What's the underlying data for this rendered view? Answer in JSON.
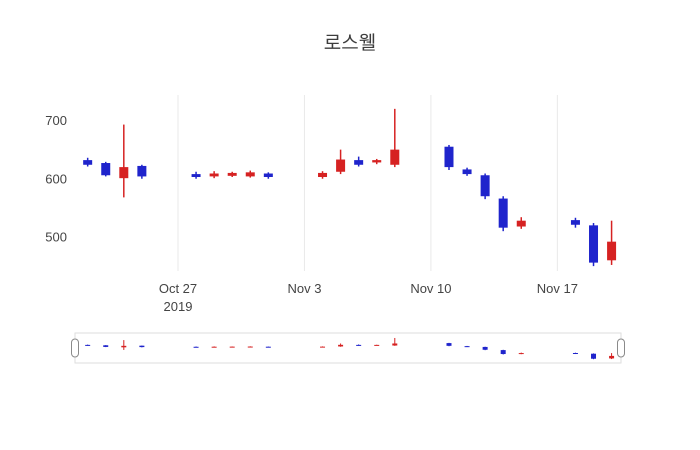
{
  "title": "로스웰",
  "colors": {
    "up": "#d62222",
    "down": "#1f24cc",
    "grid": "#e9e9e9",
    "text": "#444444",
    "slider_border": "#dedede",
    "handle_border": "#8a8a8a"
  },
  "y_axis": {
    "ticks": [
      700,
      600,
      500
    ]
  },
  "x_axis": {
    "ticks": [
      {
        "label": "Oct 27",
        "sub": "2019",
        "date": "2019-10-27"
      },
      {
        "label": "Nov 3",
        "sub": "",
        "date": "2019-11-03"
      },
      {
        "label": "Nov 10",
        "sub": "",
        "date": "2019-11-10"
      },
      {
        "label": "Nov 17",
        "sub": "",
        "date": "2019-11-17"
      }
    ]
  },
  "chart_data": {
    "type": "candlestick",
    "title": "로스웰",
    "ylim": [
      442,
      743
    ],
    "rangeslider": true,
    "x": [
      "2019-10-22",
      "2019-10-23",
      "2019-10-24",
      "2019-10-25",
      "2019-10-28",
      "2019-10-29",
      "2019-10-30",
      "2019-10-31",
      "2019-11-01",
      "2019-11-04",
      "2019-11-05",
      "2019-11-06",
      "2019-11-07",
      "2019-11-08",
      "2019-11-11",
      "2019-11-12",
      "2019-11-13",
      "2019-11-14",
      "2019-11-15",
      "2019-11-18",
      "2019-11-19",
      "2019-11-20"
    ],
    "open": [
      632,
      627,
      601,
      622,
      608,
      604,
      605,
      604,
      609,
      603,
      612,
      632,
      628,
      624,
      655,
      616,
      606,
      566,
      518,
      529,
      520,
      460
    ],
    "high": [
      636,
      629,
      693,
      624,
      612,
      613,
      612,
      614,
      611,
      613,
      650,
      638,
      634,
      720,
      658,
      619,
      609,
      570,
      534,
      533,
      524,
      528
    ],
    "low": [
      621,
      604,
      568,
      600,
      600,
      601,
      603,
      602,
      600,
      600,
      608,
      621,
      625,
      620,
      615,
      605,
      565,
      510,
      514,
      516,
      450,
      452
    ],
    "close": [
      624,
      606,
      620,
      604,
      603,
      609,
      610,
      611,
      603,
      610,
      633,
      624,
      632,
      650,
      620,
      608,
      570,
      516,
      528,
      521,
      456,
      492
    ]
  }
}
